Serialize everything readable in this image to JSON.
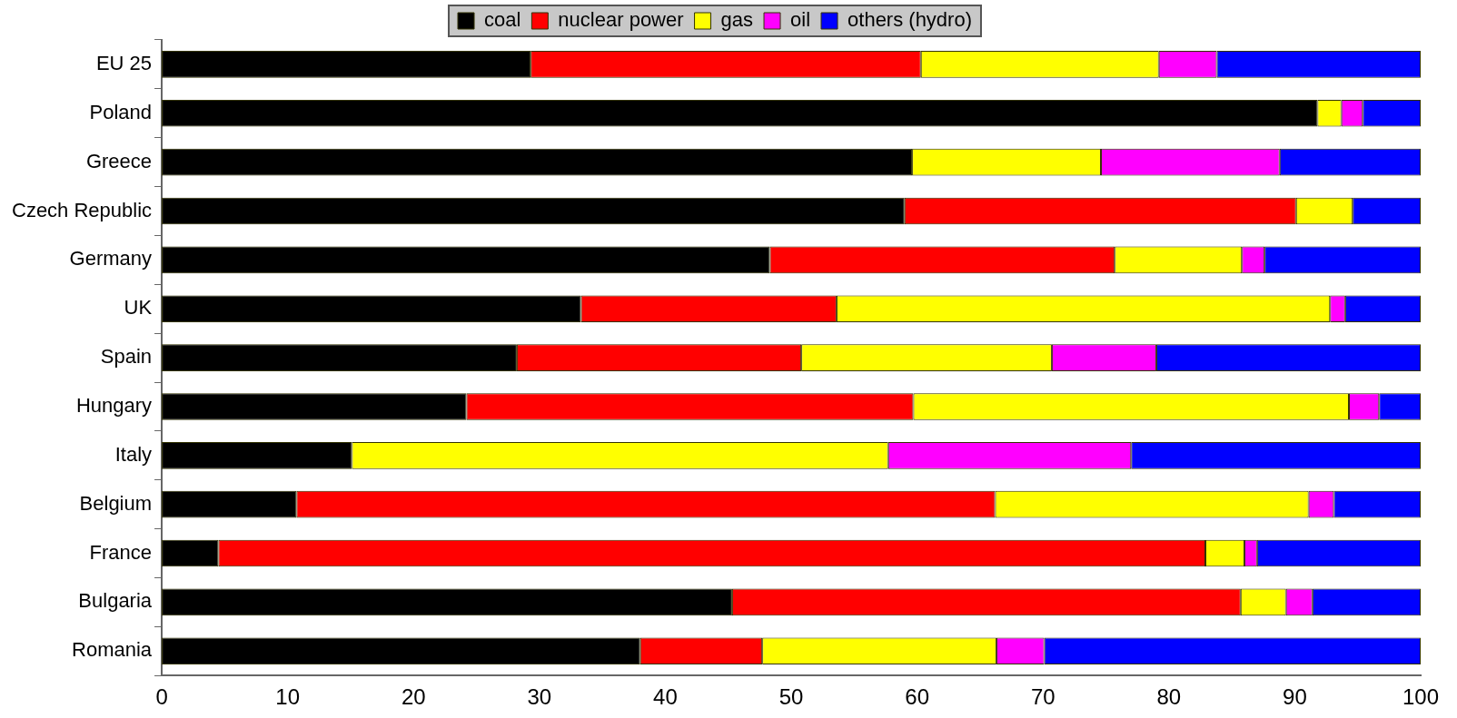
{
  "chart_data": {
    "type": "bar",
    "orientation": "horizontal",
    "stacked": true,
    "categories": [
      "EU 25",
      "Poland",
      "Greece",
      "Czech Republic",
      "Germany",
      "UK",
      "Spain",
      "Hungary",
      "Italy",
      "Belgium",
      "France",
      "Bulgaria",
      "Romania"
    ],
    "series": [
      {
        "name": "coal",
        "color": "#000000",
        "values": [
          29.3,
          91.8,
          59.6,
          59,
          48.3,
          33.3,
          28.2,
          24.2,
          15.1,
          10.7,
          4.5,
          45.3,
          38
        ]
      },
      {
        "name": "nuclear power",
        "color": "#ff0000",
        "values": [
          31,
          0,
          0,
          31.1,
          27.4,
          20.3,
          22.6,
          35.5,
          0,
          55.5,
          78.4,
          40.4,
          9.7
        ]
      },
      {
        "name": "gas",
        "color": "#ffff00",
        "values": [
          18.9,
          1.9,
          15,
          4.5,
          10.1,
          39.2,
          19.9,
          34.6,
          42.6,
          24.9,
          3.1,
          3.6,
          18.6
        ]
      },
      {
        "name": "oil",
        "color": "#ff00ff",
        "values": [
          4.6,
          1.7,
          14.2,
          0,
          1.8,
          1.2,
          8.3,
          2.4,
          19.3,
          2,
          1,
          2.1,
          3.8
        ]
      },
      {
        "name": "others (hydro)",
        "color": "#0000ff",
        "values": [
          16.2,
          4.6,
          11.2,
          5.4,
          12.4,
          6,
          21,
          3.3,
          23,
          6.9,
          13,
          8.6,
          29.9
        ]
      }
    ],
    "xlim": [
      0,
      100
    ],
    "xticks": [
      0,
      10,
      20,
      30,
      40,
      50,
      60,
      70,
      80,
      90,
      100
    ],
    "grid": false,
    "legend": "top"
  }
}
